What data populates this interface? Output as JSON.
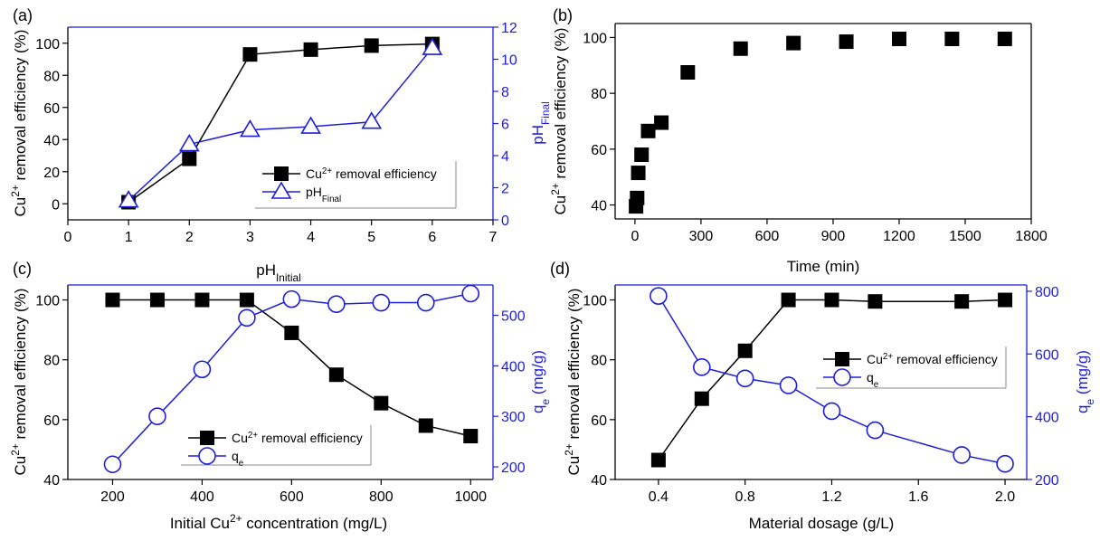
{
  "colors": {
    "black": "#000000",
    "blue": "#1e1ed8"
  },
  "chart_data": [
    {
      "id": "a",
      "panel_label": "(a)",
      "type": "line",
      "xlabel": {
        "main": "pH",
        "sub": "Initial"
      },
      "xlim": [
        0,
        7
      ],
      "xticks": [
        "0",
        "1",
        "2",
        "3",
        "4",
        "5",
        "6",
        "7"
      ],
      "ylabel_left": {
        "pre": "Cu",
        "sup": "2+",
        "post": " removal efficiency (%)"
      },
      "ylim_left": [
        -10,
        110
      ],
      "yticks_left": [
        "0",
        "20",
        "40",
        "60",
        "80",
        "100"
      ],
      "ylabel_right": {
        "main": "pH",
        "sub": "Final"
      },
      "ylim_right": [
        0,
        12
      ],
      "yticks_right": [
        "0",
        "2",
        "4",
        "6",
        "8",
        "10",
        "12"
      ],
      "series": [
        {
          "name": "Cu2+ removal efficiency",
          "axis": "left",
          "marker": "square",
          "color": "black",
          "x": [
            1,
            2,
            3,
            4,
            5,
            6
          ],
          "y": [
            1,
            28,
            93,
            96,
            98.5,
            99.5
          ]
        },
        {
          "name": "pHFinal",
          "axis": "right",
          "marker": "triangle",
          "color": "blue",
          "x": [
            1,
            2,
            3,
            4,
            5,
            6
          ],
          "y": [
            1.2,
            4.7,
            5.6,
            5.8,
            6.1,
            10.7
          ]
        }
      ],
      "legend": [
        {
          "pre": "Cu",
          "sup": "2+",
          "post": " removal efficiency",
          "sub": ""
        },
        {
          "pre": "pH",
          "sup": "",
          "post": "",
          "sub": "Final"
        }
      ]
    },
    {
      "id": "b",
      "panel_label": "(b)",
      "type": "scatter",
      "xlabel": {
        "main": "Time (min)"
      },
      "xlim": [
        -90,
        1800
      ],
      "xticks": [
        "0",
        "300",
        "600",
        "900",
        "1200",
        "1500",
        "1800"
      ],
      "ylabel_left": {
        "pre": "Cu",
        "sup": "2+",
        "post": " removal efficiency (%)"
      },
      "ylim_left": [
        35,
        105
      ],
      "yticks_left": [
        "40",
        "60",
        "80",
        "100"
      ],
      "series": [
        {
          "name": "Cu2+ removal efficiency",
          "axis": "left",
          "marker": "square",
          "color": "black",
          "x": [
            5,
            10,
            15,
            30,
            60,
            120,
            240,
            480,
            720,
            960,
            1200,
            1440,
            1680
          ],
          "y": [
            39.5,
            42.5,
            51.5,
            58,
            66.5,
            69.5,
            87.5,
            96,
            98,
            98.5,
            99.5,
            99.5,
            99.5
          ]
        }
      ]
    },
    {
      "id": "c",
      "panel_label": "(c)",
      "type": "line",
      "xlabel": {
        "pre": "Initial Cu",
        "sup": "2+",
        "post": " concentration (mg/L)"
      },
      "xlim": [
        100,
        1050
      ],
      "xticks": [
        "200",
        "400",
        "600",
        "800",
        "1000"
      ],
      "ylabel_left": {
        "pre": "Cu",
        "sup": "2+",
        "post": " removal efficiency (%)"
      },
      "ylim_left": [
        40,
        105
      ],
      "yticks_left": [
        "40",
        "60",
        "80",
        "100"
      ],
      "ylabel_right": {
        "main": "q",
        "sub": "e",
        "post": " (mg/g)"
      },
      "ylim_right": [
        175,
        560
      ],
      "yticks_right": [
        "200",
        "300",
        "400",
        "500"
      ],
      "series": [
        {
          "name": "Cu2+ removal efficiency",
          "axis": "left",
          "marker": "square",
          "color": "black",
          "x": [
            200,
            300,
            400,
            500,
            600,
            700,
            800,
            900,
            1000
          ],
          "y": [
            100,
            100,
            100,
            100,
            89,
            75,
            65.5,
            58,
            54.5
          ]
        },
        {
          "name": "qe",
          "axis": "right",
          "marker": "circle",
          "color": "blue",
          "x": [
            200,
            300,
            400,
            500,
            600,
            700,
            800,
            900,
            1000
          ],
          "y": [
            205,
            300,
            393,
            495,
            532,
            522,
            525,
            525,
            543
          ]
        }
      ],
      "legend": [
        {
          "pre": "Cu",
          "sup": "2+",
          "post": " removal efficiency",
          "sub": ""
        },
        {
          "pre": "q",
          "sup": "",
          "post": "",
          "sub": "e"
        }
      ]
    },
    {
      "id": "d",
      "panel_label": "(d)",
      "type": "line",
      "xlabel": {
        "main": "Material dosage (g/L)"
      },
      "xlim": [
        0.2,
        2.1
      ],
      "xticks": [
        "0.4",
        "0.8",
        "1.2",
        "1.6",
        "2.0"
      ],
      "ylabel_left": {
        "pre": "Cu",
        "sup": "2+",
        "post": " removal efficiency (%)"
      },
      "ylim_left": [
        40,
        105
      ],
      "yticks_left": [
        "40",
        "60",
        "80",
        "100"
      ],
      "ylabel_right": {
        "main": "q",
        "sub": "e",
        "post": " (mg/g)"
      },
      "ylim_right": [
        200,
        820
      ],
      "yticks_right": [
        "200",
        "400",
        "600",
        "800"
      ],
      "series": [
        {
          "name": "Cu2+ removal efficiency",
          "axis": "left",
          "marker": "square",
          "color": "black",
          "x": [
            0.4,
            0.6,
            0.8,
            1.0,
            1.2,
            1.4,
            1.8,
            2.0
          ],
          "y": [
            46.5,
            67,
            83,
            100,
            100,
            99.5,
            99.5,
            100
          ]
        },
        {
          "name": "qe",
          "axis": "right",
          "marker": "circle",
          "color": "blue",
          "x": [
            0.4,
            0.6,
            0.8,
            1.0,
            1.2,
            1.4,
            1.8,
            2.0
          ],
          "y": [
            785,
            558,
            522,
            500,
            418,
            357,
            278,
            250
          ]
        }
      ],
      "legend": [
        {
          "pre": "Cu",
          "sup": "2+",
          "post": " removal efficiency",
          "sub": ""
        },
        {
          "pre": "q",
          "sup": "",
          "post": "",
          "sub": "e"
        }
      ]
    }
  ]
}
